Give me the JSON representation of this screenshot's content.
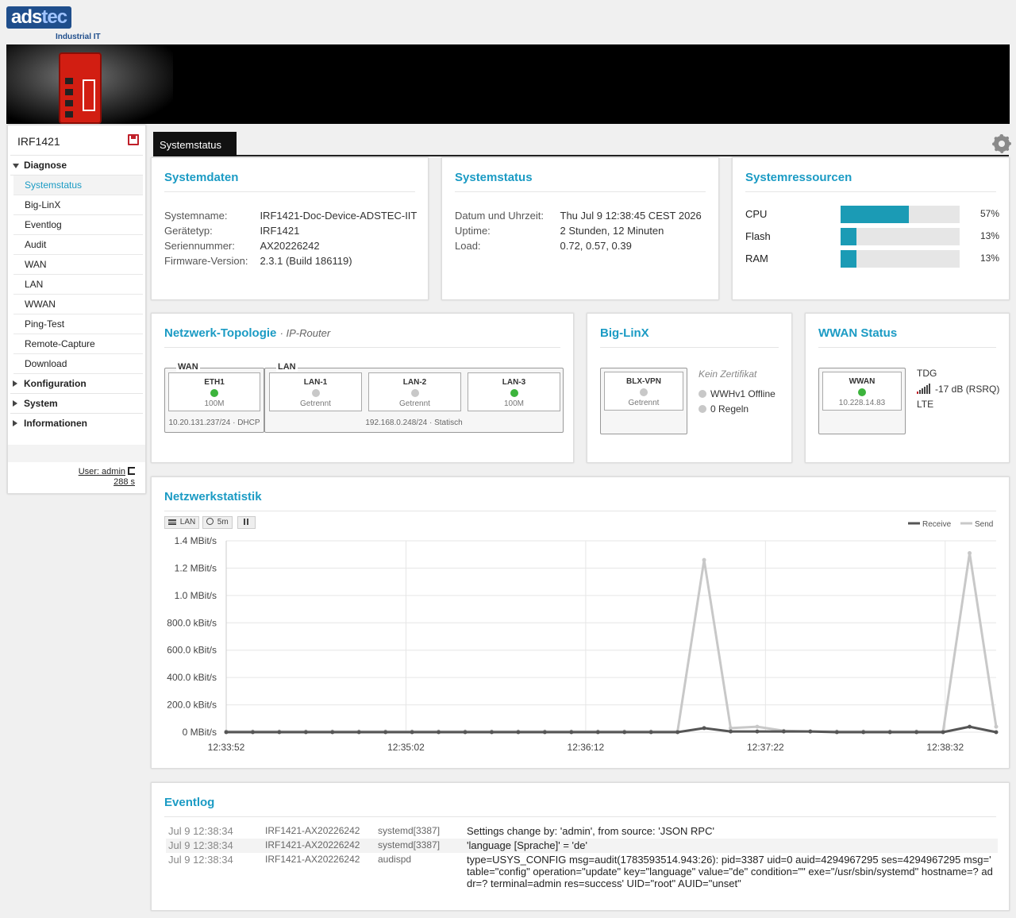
{
  "brand": {
    "logo_text_a": "ads",
    "logo_text_b": "tec",
    "subtitle": "Industrial IT"
  },
  "colors": {
    "accent": "#1b9bc4",
    "bar": "#1b9bb5",
    "led_on": "#3cb43c",
    "led_off": "#c8c8c8"
  },
  "sidebar": {
    "device_name": "IRF1421",
    "save_icon": "save-icon",
    "groups": [
      {
        "label": "Diagnose",
        "expanded": true,
        "items": [
          "Systemstatus",
          "Big-LinX",
          "Eventlog",
          "Audit",
          "WAN",
          "LAN",
          "WWAN",
          "Ping-Test",
          "Remote-Capture",
          "Download"
        ],
        "active": "Systemstatus"
      },
      {
        "label": "Konfiguration",
        "expanded": false
      },
      {
        "label": "System",
        "expanded": false
      },
      {
        "label": "Informationen",
        "expanded": false
      }
    ],
    "user": "User: admin",
    "session": "288 s"
  },
  "tabs": {
    "active": "Systemstatus"
  },
  "systemdaten": {
    "title": "Systemdaten",
    "rows": [
      {
        "k": "Systemname:",
        "v": "IRF1421-Doc-Device-ADSTEC-IIT"
      },
      {
        "k": "Gerätetyp:",
        "v": "IRF1421"
      },
      {
        "k": "Seriennummer:",
        "v": "AX20226242"
      },
      {
        "k": "Firmware-Version:",
        "v": "2.3.1 (Build 186119)"
      }
    ]
  },
  "systemstatus": {
    "title": "Systemstatus",
    "rows": [
      {
        "k": "Datum und Uhrzeit:",
        "v": "Thu Jul 9 12:38:45 CEST 2026"
      },
      {
        "k": "Uptime:",
        "v": "2 Stunden, 12 Minuten"
      },
      {
        "k": "Load:",
        "v": "0.72, 0.57, 0.39"
      }
    ]
  },
  "systemressourcen": {
    "title": "Systemressourcen",
    "items": [
      {
        "label": "CPU",
        "percent": 57,
        "text": "57%"
      },
      {
        "label": "Flash",
        "percent": 13,
        "text": "13%"
      },
      {
        "label": "RAM",
        "percent": 13,
        "text": "13%"
      }
    ]
  },
  "topology": {
    "title": "Netzwerk-Topologie",
    "subtitle": "· IP-Router",
    "wan": {
      "label": "WAN",
      "info": "10.20.131.237/24 · DHCP",
      "ports": [
        {
          "name": "ETH1",
          "status": "100M",
          "up": true
        }
      ]
    },
    "lan": {
      "label": "LAN",
      "info": "192.168.0.248/24 · Statisch",
      "ports": [
        {
          "name": "LAN-1",
          "status": "Getrennt",
          "up": false
        },
        {
          "name": "LAN-2",
          "status": "Getrennt",
          "up": false
        },
        {
          "name": "LAN-3",
          "status": "100M",
          "up": true
        }
      ]
    }
  },
  "biglinx": {
    "title": "Big-LinX",
    "vpn": {
      "name": "BLX-VPN",
      "status": "Getrennt",
      "up": false
    },
    "cert": "Kein Zertifikat",
    "lines": [
      "WWHv1 Offline",
      "0 Regeln"
    ]
  },
  "wwan": {
    "title": "WWAN Status",
    "box": {
      "name": "WWAN",
      "ip": "10.228.14.83",
      "up": true
    },
    "operator": "TDG",
    "signal": "-17 dB (RSRQ)",
    "tech": "LTE",
    "signal_icon": "signal-bars-icon"
  },
  "netzwerkstatistik": {
    "title": "Netzwerkstatistik",
    "buttons": {
      "interface": "LAN",
      "interval": "5m"
    }
  },
  "chart_data": {
    "type": "line",
    "title": "",
    "xlabel": "",
    "ylabel": "",
    "x_ticks": [
      "12:33:52",
      "12:35:02",
      "12:36:12",
      "12:37:22",
      "12:38:32"
    ],
    "y_ticks": [
      "0 MBit/s",
      "200.0 kBit/s",
      "400.0 kBit/s",
      "600.0 kBit/s",
      "800.0 kBit/s",
      "1.0 MBit/s",
      "1.2 MBit/s",
      "1.4 MBit/s"
    ],
    "ylim": [
      0,
      1400
    ],
    "y_unit": "kBit/s",
    "legend_position": "top-right",
    "grid": true,
    "x_count": 30,
    "series": [
      {
        "name": "Receive",
        "color": "#555555",
        "values": [
          0,
          0,
          0,
          0,
          0,
          0,
          0,
          0,
          0,
          0,
          0,
          0,
          0,
          0,
          0,
          0,
          0,
          0,
          30,
          5,
          5,
          5,
          5,
          0,
          0,
          0,
          0,
          0,
          40,
          0
        ]
      },
      {
        "name": "Send",
        "color": "#c8c8c8",
        "values": [
          5,
          5,
          5,
          5,
          5,
          5,
          5,
          5,
          5,
          5,
          5,
          5,
          5,
          5,
          5,
          5,
          5,
          5,
          1260,
          30,
          40,
          10,
          5,
          5,
          5,
          5,
          5,
          5,
          1310,
          40
        ]
      }
    ]
  },
  "eventlog": {
    "title": "Eventlog",
    "rows": [
      {
        "date": "Jul 9 12:38:34",
        "host": "IRF1421-AX20226242",
        "proc": "systemd[3387]",
        "msg": "Settings change by: 'admin', from source: 'JSON RPC'"
      },
      {
        "date": "Jul 9 12:38:34",
        "host": "IRF1421-AX20226242",
        "proc": "systemd[3387]",
        "msg": "'language [Sprache]' = 'de'"
      },
      {
        "date": "Jul 9 12:38:34",
        "host": "IRF1421-AX20226242",
        "proc": "audispd",
        "msg": "type=USYS_CONFIG msg=audit(1783593514.943:26): pid=3387 uid=0 auid=4294967295 ses=4294967295 msg=' table=\"config\" operation=\"update\" key=\"language\" value=\"de\" condition=\"\" exe=\"/usr/sbin/systemd\" hostname=? addr=? terminal=admin res=success' UID=\"root\" AUID=\"unset\""
      }
    ]
  }
}
